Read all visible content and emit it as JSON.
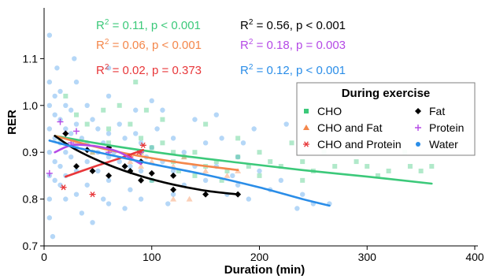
{
  "chart_data": {
    "type": "scatter",
    "xlabel": "Duration (min)",
    "ylabel": "RER",
    "xlim": [
      0,
      400
    ],
    "ylim": [
      0.7,
      1.2
    ],
    "x_ticks": [
      0,
      100,
      200,
      300,
      400
    ],
    "y_ticks": [
      0.7,
      0.8,
      0.9,
      1.0,
      1.1
    ],
    "x_tick_labels": [
      "0",
      "100",
      "200",
      "300",
      "400"
    ],
    "y_tick_labels": [
      "0.7",
      "0.8",
      "0.9",
      "1.0",
      "1.1"
    ],
    "legend": {
      "title": "During exercise",
      "position": "top-right",
      "entries": [
        {
          "label": "CHO",
          "color": "#3cc97a",
          "marker": "square"
        },
        {
          "label": "Fat",
          "color": "#000000",
          "marker": "diamond"
        },
        {
          "label": "CHO and Fat",
          "color": "#f4874b",
          "marker": "triangle"
        },
        {
          "label": "Protein",
          "color": "#b54ae6",
          "marker": "plus"
        },
        {
          "label": "CHO and Protein",
          "color": "#e8373a",
          "marker": "asterisk"
        },
        {
          "label": "Water",
          "color": "#2a8de8",
          "marker": "circle"
        }
      ]
    },
    "annotations": [
      {
        "text": "R2 = 0.11, p < 0.001",
        "r2_value": "0.11",
        "p_text": "p < 0.001",
        "color": "#3cc97a",
        "row": 0,
        "column": 0
      },
      {
        "text": "R2 = 0.06, p < 0.001",
        "r2_value": "0.06",
        "p_text": "p < 0.001",
        "color": "#f4874b",
        "row": 1,
        "column": 0
      },
      {
        "text": "R2 = 0.02, p = 0.373",
        "r2_value": "0.02",
        "p_text": "p = 0.373",
        "color": "#e8373a",
        "row": 2,
        "column": 0
      },
      {
        "text": "R2 = 0.56, p < 0.001",
        "r2_value": "0.56",
        "p_text": "p < 0.001",
        "color": "#000000",
        "row": 0,
        "column": 1
      },
      {
        "text": "R2 = 0.18, p = 0.003",
        "r2_value": "0.18",
        "p_text": "p = 0.003",
        "color": "#b54ae6",
        "row": 1,
        "column": 1
      },
      {
        "text": "R2 = 0.12, p < 0.001",
        "r2_value": "0.12",
        "p_text": "p < 0.001",
        "color": "#2a8de8",
        "row": 2,
        "column": 1
      }
    ],
    "series": [
      {
        "name": "CHO",
        "color": "#3cc97a",
        "marker": "square",
        "points": [
          [
            15,
            0.93
          ],
          [
            20,
            1.02
          ],
          [
            30,
            0.98
          ],
          [
            40,
            0.96
          ],
          [
            60,
            0.95
          ],
          [
            60,
            0.92
          ],
          [
            80,
            0.96
          ],
          [
            90,
            0.93
          ],
          [
            90,
            0.9
          ],
          [
            95,
            0.99
          ],
          [
            100,
            0.91
          ],
          [
            110,
            0.92
          ],
          [
            120,
            0.9
          ],
          [
            120,
            0.88
          ],
          [
            130,
            0.89
          ],
          [
            140,
            0.9
          ],
          [
            150,
            0.87
          ],
          [
            160,
            0.88
          ],
          [
            170,
            0.86
          ],
          [
            180,
            0.89
          ],
          [
            190,
            0.87
          ],
          [
            200,
            0.9
          ],
          [
            210,
            0.88
          ],
          [
            220,
            0.87
          ],
          [
            240,
            0.88
          ],
          [
            250,
            0.86
          ],
          [
            270,
            0.87
          ],
          [
            300,
            0.87
          ],
          [
            320,
            0.86
          ],
          [
            340,
            0.87
          ],
          [
            360,
            0.87
          ],
          [
            70,
            1.0
          ],
          [
            85,
            1.05
          ],
          [
            110,
            0.97
          ],
          [
            150,
            0.96
          ],
          [
            180,
            0.93
          ],
          [
            200,
            0.85
          ],
          [
            230,
            0.92
          ],
          [
            260,
            0.9
          ],
          [
            290,
            0.88
          ],
          [
            310,
            0.85
          ],
          [
            335,
            0.9
          ],
          [
            350,
            0.86
          ],
          [
            125,
            0.86
          ],
          [
            165,
            0.84
          ],
          [
            45,
            0.9
          ],
          [
            55,
            0.99
          ],
          [
            100,
            0.84
          ],
          [
            140,
            0.85
          ],
          [
            240,
            0.84
          ]
        ],
        "trend": [
          [
            10,
            0.935
          ],
          [
            60,
            0.915
          ],
          [
            120,
            0.895
          ],
          [
            180,
            0.878
          ],
          [
            240,
            0.862
          ],
          [
            300,
            0.848
          ],
          [
            360,
            0.833
          ]
        ]
      },
      {
        "name": "CHO and Fat",
        "color": "#f4874b",
        "marker": "triangle",
        "points": [
          [
            30,
            0.92
          ],
          [
            45,
            0.9
          ],
          [
            60,
            0.9
          ],
          [
            80,
            0.88
          ],
          [
            90,
            0.9
          ],
          [
            90,
            0.87
          ],
          [
            100,
            0.88
          ],
          [
            120,
            0.87
          ],
          [
            130,
            0.89
          ],
          [
            150,
            0.86
          ],
          [
            170,
            0.85
          ],
          [
            180,
            0.86
          ],
          [
            120,
            0.8
          ],
          [
            135,
            0.8
          ]
        ],
        "trend": [
          [
            10,
            0.935
          ],
          [
            60,
            0.905
          ],
          [
            120,
            0.88
          ],
          [
            180,
            0.862
          ]
        ]
      },
      {
        "name": "CHO and Protein",
        "color": "#e8373a",
        "marker": "asterisk",
        "points": [
          [
            18,
            0.825
          ],
          [
            45,
            0.81
          ],
          [
            80,
            0.89
          ],
          [
            88,
            0.9
          ],
          [
            92,
            0.915
          ],
          [
            60,
            0.91
          ]
        ],
        "trend": [
          [
            20,
            0.848
          ],
          [
            50,
            0.872
          ],
          [
            70,
            0.887
          ],
          [
            92,
            0.905
          ]
        ]
      },
      {
        "name": "Fat",
        "color": "#000000",
        "marker": "diamond",
        "points": [
          [
            20,
            0.94
          ],
          [
            30,
            0.87
          ],
          [
            40,
            0.905
          ],
          [
            45,
            0.86
          ],
          [
            60,
            0.85
          ],
          [
            60,
            0.91
          ],
          [
            75,
            0.87
          ],
          [
            80,
            0.86
          ],
          [
            90,
            0.84
          ],
          [
            90,
            0.88
          ],
          [
            100,
            0.855
          ],
          [
            120,
            0.82
          ],
          [
            120,
            0.85
          ],
          [
            150,
            0.81
          ],
          [
            180,
            0.81
          ]
        ],
        "trend": [
          [
            10,
            0.935
          ],
          [
            30,
            0.905
          ],
          [
            60,
            0.873
          ],
          [
            90,
            0.849
          ],
          [
            120,
            0.831
          ],
          [
            150,
            0.818
          ],
          [
            180,
            0.81
          ]
        ]
      },
      {
        "name": "Protein",
        "color": "#b54ae6",
        "marker": "plus",
        "points": [
          [
            5,
            0.855
          ],
          [
            15,
            0.965
          ],
          [
            20,
            0.94
          ],
          [
            25,
            0.92
          ],
          [
            30,
            0.945
          ],
          [
            60,
            0.9
          ],
          [
            90,
            0.9
          ]
        ],
        "trend": [
          [
            10,
            0.9
          ],
          [
            25,
            0.915
          ],
          [
            40,
            0.915
          ],
          [
            55,
            0.91
          ],
          [
            70,
            0.9
          ],
          [
            90,
            0.875
          ]
        ]
      },
      {
        "name": "Water",
        "color": "#2a8de8",
        "marker": "circle",
        "points": [
          [
            5,
            1.15
          ],
          [
            5,
            1.05
          ],
          [
            5,
            1.0
          ],
          [
            5,
            0.95
          ],
          [
            5,
            0.9
          ],
          [
            5,
            0.85
          ],
          [
            5,
            0.8
          ],
          [
            5,
            0.76
          ],
          [
            10,
            1.02
          ],
          [
            10,
            0.98
          ],
          [
            10,
            0.93
          ],
          [
            10,
            0.88
          ],
          [
            10,
            0.84
          ],
          [
            15,
            1.03
          ],
          [
            15,
            0.97
          ],
          [
            15,
            0.92
          ],
          [
            15,
            0.87
          ],
          [
            15,
            0.83
          ],
          [
            20,
            1.0
          ],
          [
            20,
            0.95
          ],
          [
            20,
            0.9
          ],
          [
            20,
            0.85
          ],
          [
            20,
            0.8
          ],
          [
            25,
            0.99
          ],
          [
            25,
            0.94
          ],
          [
            25,
            0.89
          ],
          [
            30,
            1.05
          ],
          [
            30,
            0.96
          ],
          [
            30,
            0.91
          ],
          [
            30,
            0.86
          ],
          [
            30,
            0.81
          ],
          [
            35,
            0.93
          ],
          [
            40,
            1.0
          ],
          [
            40,
            0.92
          ],
          [
            40,
            0.88
          ],
          [
            40,
            0.83
          ],
          [
            45,
            0.97
          ],
          [
            50,
            0.95
          ],
          [
            50,
            0.9
          ],
          [
            50,
            0.86
          ],
          [
            55,
            0.92
          ],
          [
            60,
            1.02
          ],
          [
            60,
            0.94
          ],
          [
            60,
            0.89
          ],
          [
            60,
            0.84
          ],
          [
            60,
            0.79
          ],
          [
            65,
            0.9
          ],
          [
            70,
            0.96
          ],
          [
            70,
            0.88
          ],
          [
            75,
            0.93
          ],
          [
            80,
            0.87
          ],
          [
            80,
            0.82
          ],
          [
            85,
            0.94
          ],
          [
            90,
            0.92
          ],
          [
            90,
            0.86
          ],
          [
            90,
            0.8
          ],
          [
            95,
            0.89
          ],
          [
            100,
            0.91
          ],
          [
            100,
            0.84
          ],
          [
            105,
            0.95
          ],
          [
            110,
            0.88
          ],
          [
            120,
            0.93
          ],
          [
            120,
            0.86
          ],
          [
            120,
            0.81
          ],
          [
            130,
            0.9
          ],
          [
            140,
            0.87
          ],
          [
            150,
            0.92
          ],
          [
            150,
            0.84
          ],
          [
            160,
            0.87
          ],
          [
            170,
            0.81
          ],
          [
            175,
            0.85
          ],
          [
            180,
            0.89
          ],
          [
            180,
            0.83
          ],
          [
            190,
            0.8
          ],
          [
            200,
            0.86
          ],
          [
            210,
            0.82
          ],
          [
            220,
            0.84
          ],
          [
            240,
            0.81
          ],
          [
            250,
            0.79
          ],
          [
            8,
            0.72
          ],
          [
            12,
            1.08
          ],
          [
            28,
            1.1
          ],
          [
            45,
            0.75
          ],
          [
            75,
            0.78
          ],
          [
            110,
            0.99
          ],
          [
            140,
            0.97
          ],
          [
            160,
            0.98
          ],
          [
            195,
            0.95
          ],
          [
            225,
            0.96
          ],
          [
            235,
            0.78
          ],
          [
            60,
            1.08
          ],
          [
            100,
            1.01
          ],
          [
            35,
            0.77
          ],
          [
            55,
            0.8
          ],
          [
            130,
            0.83
          ],
          [
            165,
            0.93
          ],
          [
            265,
            0.79
          ],
          [
            185,
            0.92
          ],
          [
            115,
            0.79
          ],
          [
            85,
            0.99
          ]
        ],
        "trend": [
          [
            5,
            0.925
          ],
          [
            30,
            0.91
          ],
          [
            60,
            0.895
          ],
          [
            100,
            0.875
          ],
          [
            150,
            0.852
          ],
          [
            200,
            0.825
          ],
          [
            240,
            0.8
          ],
          [
            265,
            0.786
          ]
        ]
      }
    ]
  }
}
